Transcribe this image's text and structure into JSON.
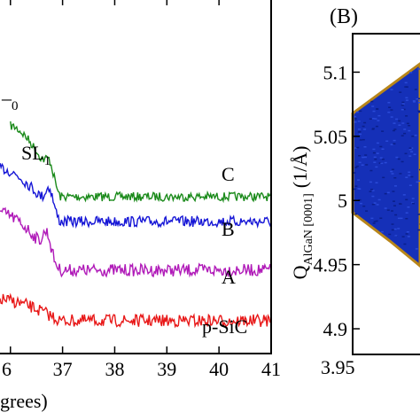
{
  "chart_data": [
    {
      "type": "line",
      "xlabel": "grees)",
      "ylabel": "",
      "xlim": [
        35.8,
        41
      ],
      "x_ticks": [
        "6",
        "37",
        "38",
        "39",
        "40",
        "41"
      ],
      "x_tick_values": [
        36,
        37,
        38,
        39,
        40,
        41
      ],
      "annotations": [
        {
          "text": "0",
          "kind": "partial-label"
        },
        {
          "text": "SL",
          "sub": "1"
        }
      ],
      "series": [
        {
          "name": "C",
          "color": "#1a8a1a"
        },
        {
          "name": "B",
          "color": "#1515d6"
        },
        {
          "name": "A",
          "color": "#b01ab8"
        },
        {
          "name": "p-SiC",
          "color": "#e81818"
        }
      ]
    },
    {
      "type": "heatmap",
      "panel_label": "(B)",
      "ylabel": "Q",
      "ylabel_sub": "AlGaN [0001]",
      "ylabel_unit": "(1/Å)",
      "ylim": [
        4.88,
        5.13
      ],
      "y_ticks": [
        "5.1",
        "5.05",
        "5",
        "4.95",
        "4.9"
      ],
      "y_tick_values": [
        5.1,
        5.05,
        5.0,
        4.95,
        4.9
      ],
      "x_ticks": [
        "3.95"
      ],
      "colors": {
        "fill": "#1530b8",
        "edge": "#b8861a"
      }
    }
  ]
}
